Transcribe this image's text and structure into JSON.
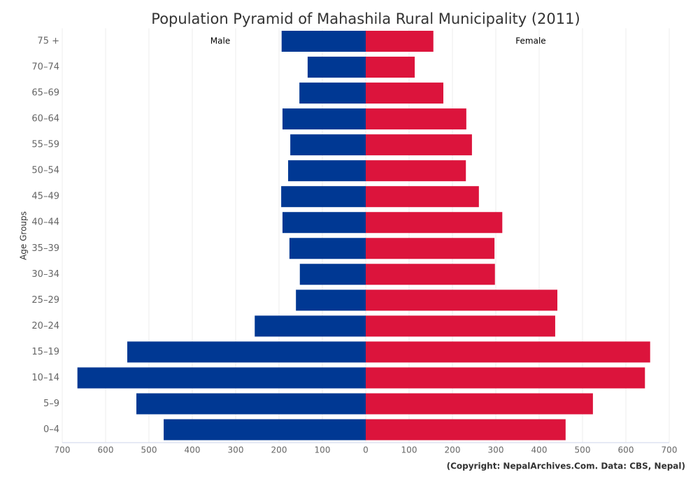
{
  "chart_data": {
    "type": "pyramid",
    "title": "Population Pyramid of Mahashila Rural Municipality (2011)",
    "y_label": "Age Groups",
    "source": "(Copyright: NepalArchives.Com. Data: CBS, Nepal)",
    "categories": [
      "0–4",
      "5–9",
      "10–14",
      "15–19",
      "20–24",
      "25–29",
      "30–34",
      "35–39",
      "40–44",
      "45–49",
      "50–54",
      "55–59",
      "60–64",
      "65–69",
      "70–74",
      "75 +"
    ],
    "series": [
      {
        "name": "Male",
        "color": "#003893",
        "values": [
          -466,
          -529,
          -665,
          -550,
          -256,
          -161,
          -152,
          -176,
          -192,
          -195,
          -179,
          -174,
          -192,
          -153,
          -134,
          -194
        ]
      },
      {
        "name": "Female",
        "color": "#dc143c",
        "values": [
          461,
          524,
          644,
          656,
          437,
          442,
          298,
          297,
          315,
          261,
          231,
          245,
          232,
          179,
          113,
          156
        ]
      }
    ],
    "xlim": [
      -700,
      700
    ],
    "xticks": [
      {
        "value": -700,
        "label": "700"
      },
      {
        "value": -600,
        "label": "600"
      },
      {
        "value": -500,
        "label": "500"
      },
      {
        "value": -400,
        "label": "400"
      },
      {
        "value": -300,
        "label": "300"
      },
      {
        "value": -200,
        "label": "200"
      },
      {
        "value": -100,
        "label": "100"
      },
      0,
      100,
      200,
      300,
      400,
      500,
      600,
      700
    ],
    "grid": true
  }
}
